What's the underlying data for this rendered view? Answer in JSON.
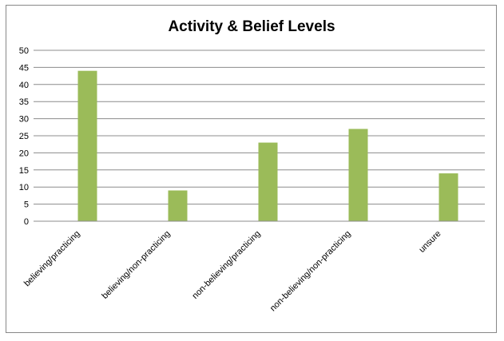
{
  "chart_data": {
    "type": "bar",
    "title": "Activity & Belief Levels",
    "categories": [
      "believing/practicing",
      "believing/non-practicing",
      "non-believing/practicing",
      "non-believing/non-practicing",
      "unsure"
    ],
    "values": [
      44,
      9,
      23,
      27,
      14
    ],
    "ylim": [
      0,
      50
    ],
    "yticks": [
      0,
      5,
      10,
      15,
      20,
      25,
      30,
      35,
      40,
      45,
      50
    ],
    "grid": true,
    "legend": "none",
    "bar_color": "#9BBB59"
  }
}
